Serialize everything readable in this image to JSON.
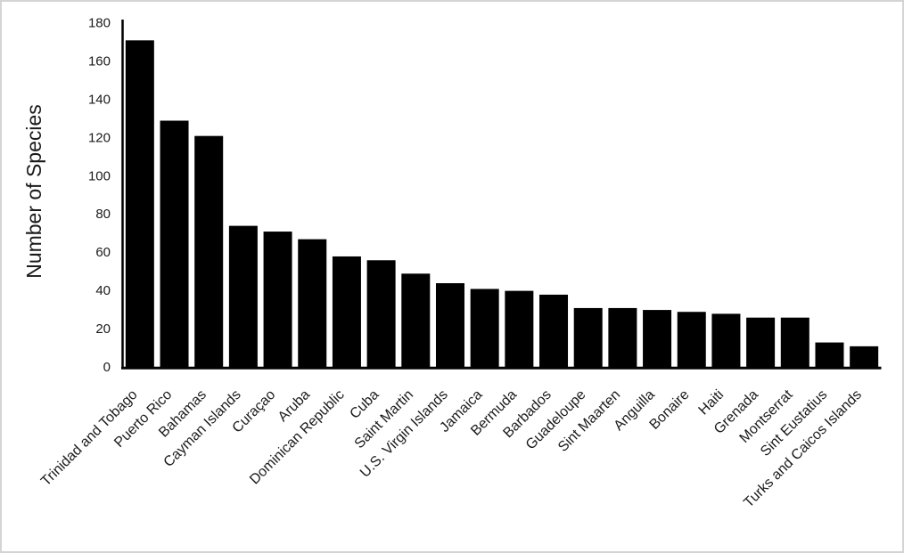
{
  "window": {
    "background": "#ffffff",
    "border_color": "#d4d4d4"
  },
  "chart_data": {
    "type": "bar",
    "title": "",
    "xlabel": "",
    "ylabel": "Number of Species",
    "ylim": [
      0,
      180
    ],
    "ytick_step": 20,
    "ytick_labels": [
      "0",
      "20",
      "40",
      "60",
      "80",
      "100",
      "120",
      "140",
      "160",
      "180"
    ],
    "grid": false,
    "legend_position": "none",
    "bar_color": "#000000",
    "axis_color": "#000000",
    "label_color": "#1a1a1a",
    "categories": [
      "Trinidad and Tobago",
      "Puerto Rico",
      "Bahamas",
      "Cayman Islands",
      "Curaçao",
      "Aruba",
      "Dominican Republic",
      "Cuba",
      "Saint Martin",
      "U.S. Virgin Islands",
      "Jamaica",
      "Bermuda",
      "Barbados",
      "Guadeloupe",
      "Sint Maarten",
      "Anguilla",
      "Bonaire",
      "Haiti",
      "Grenada",
      "Montserrat",
      "Sint Eustatius",
      "Turks and Caicos Islands"
    ],
    "values": [
      171,
      129,
      121,
      74,
      71,
      67,
      58,
      56,
      49,
      44,
      41,
      40,
      38,
      31,
      31,
      30,
      29,
      28,
      26,
      26,
      13,
      11
    ]
  }
}
